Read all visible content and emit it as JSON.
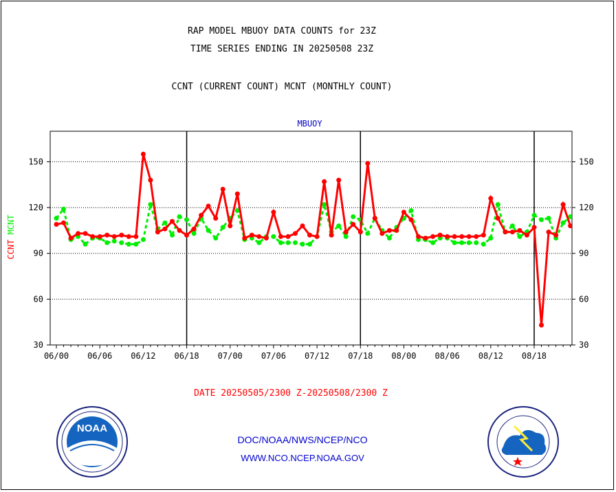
{
  "chart_data": {
    "type": "line",
    "title_lines": [
      "RAP MODEL MBUOY DATA COUNTS for 23Z",
      "TIME SERIES ENDING IN 20250508 23Z"
    ],
    "subtitle": "CCNT (CURRENT COUNT) MCNT (MONTHLY COUNT)",
    "panel_label": "MBUOY",
    "ylabel": "CCNT  MCNT",
    "ylabel_parts": [
      "CCNT",
      "MCNT"
    ],
    "ylim": [
      30,
      170
    ],
    "y_ticks": [
      30,
      60,
      90,
      120,
      150
    ],
    "y_tick_labels": [
      "30",
      "60",
      "90",
      "120",
      "150"
    ],
    "x_tick_labels": [
      "06/00",
      "06/06",
      "06/12",
      "06/18",
      "07/00",
      "07/06",
      "07/12",
      "07/18",
      "08/00",
      "08/06",
      "08/12",
      "08/18"
    ],
    "grid": true,
    "date_range": "DATE 20250505/2300 Z-20250508/2300 Z",
    "colors": {
      "ccnt": "#ff0000",
      "mcnt": "#00ee00",
      "panel_label": "#0000cc"
    },
    "series": [
      {
        "key": "ccnt",
        "color": "#ff0000",
        "values": [
          109,
          110,
          100,
          103,
          103,
          101,
          101,
          102,
          101,
          102,
          101,
          101,
          155,
          138,
          104,
          106,
          111,
          105,
          102,
          106,
          115,
          121,
          113,
          132,
          108,
          129,
          100,
          102,
          101,
          100,
          117,
          101,
          101,
          103,
          108,
          102,
          101,
          137,
          102,
          138,
          104,
          109,
          104,
          149,
          113,
          103,
          105,
          105,
          117,
          112,
          101,
          100,
          101,
          102,
          101,
          101,
          101,
          101,
          101,
          102,
          126,
          113,
          104,
          104,
          105,
          102,
          107,
          43,
          104,
          102,
          122,
          108
        ]
      },
      {
        "key": "mcnt",
        "color": "#00ee00",
        "values": [
          113,
          119,
          99,
          101,
          96,
          100,
          100,
          97,
          98,
          97,
          96,
          96,
          99,
          122,
          106,
          110,
          102,
          114,
          112,
          103,
          113,
          105,
          100,
          107,
          113,
          118,
          99,
          100,
          97,
          101,
          101,
          97,
          97,
          97,
          96,
          96,
          101,
          122,
          104,
          108,
          101,
          114,
          112,
          103,
          113,
          105,
          100,
          107,
          113,
          118,
          99,
          99,
          97,
          100,
          100,
          97,
          97,
          97,
          97,
          96,
          100,
          122,
          104,
          108,
          101,
          104,
          115,
          112,
          113,
          100,
          110,
          114
        ]
      }
    ]
  },
  "footer": {
    "line1": "DOC/NOAA/NWS/NCEP/NCO",
    "line2": "WWW.NCO.NCEP.NOAA.GOV"
  },
  "logos": [
    "noaa-logo-icon",
    "nws-logo-icon"
  ]
}
